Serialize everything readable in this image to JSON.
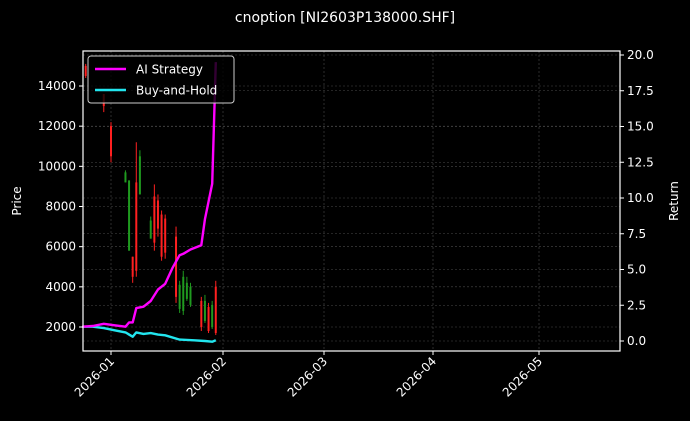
{
  "chart_data": {
    "type": "line",
    "title": "cnoption [NI2603P138000.SHF]",
    "xlabel": "",
    "ylabel": "Price",
    "y2label": "Return",
    "x_ticks": [
      "2026-01",
      "2026-02",
      "2026-03",
      "2026-04",
      "2026-05"
    ],
    "y_ticks": [
      2000,
      4000,
      6000,
      8000,
      10000,
      12000,
      14000
    ],
    "y2_ticks": [
      "0.0",
      "2.5",
      "5.0",
      "7.5",
      "10.0",
      "12.5",
      "15.0",
      "17.5",
      "20.0"
    ],
    "ylim": [
      800,
      15800
    ],
    "y2lim": [
      -0.3,
      20.3
    ],
    "grid": true,
    "legend_position": "upper left",
    "legend": [
      {
        "label": "AI Strategy",
        "color": "#ff00ff"
      },
      {
        "label": "Buy-and-Hold",
        "color": "#22e5ee"
      }
    ],
    "series": [
      {
        "name": "AI Strategy",
        "axis": "right",
        "color": "#ff00ff",
        "points": [
          [
            "2025-12-24",
            1.0
          ],
          [
            "2025-12-27",
            1.05
          ],
          [
            "2025-12-30",
            1.2
          ],
          [
            "2026-01-02",
            1.1
          ],
          [
            "2026-01-05",
            1.0
          ],
          [
            "2026-01-06",
            1.3
          ],
          [
            "2026-01-07",
            1.3
          ],
          [
            "2026-01-08",
            2.3
          ],
          [
            "2026-01-10",
            2.4
          ],
          [
            "2026-01-12",
            2.8
          ],
          [
            "2026-01-14",
            3.6
          ],
          [
            "2026-01-16",
            4.0
          ],
          [
            "2026-01-18",
            5.1
          ],
          [
            "2026-01-20",
            6.0
          ],
          [
            "2026-01-21",
            6.1
          ],
          [
            "2026-01-23",
            6.4
          ],
          [
            "2026-01-26",
            6.7
          ],
          [
            "2026-01-27",
            8.5
          ],
          [
            "2026-01-29",
            11.0
          ],
          [
            "2026-01-30",
            19.5
          ]
        ]
      },
      {
        "name": "Buy-and-Hold",
        "axis": "right",
        "color": "#22e5ee",
        "points": [
          [
            "2025-12-24",
            1.0
          ],
          [
            "2025-12-27",
            1.0
          ],
          [
            "2025-12-30",
            0.9
          ],
          [
            "2026-01-02",
            0.75
          ],
          [
            "2026-01-05",
            0.6
          ],
          [
            "2026-01-07",
            0.3
          ],
          [
            "2026-01-08",
            0.6
          ],
          [
            "2026-01-10",
            0.5
          ],
          [
            "2026-01-12",
            0.55
          ],
          [
            "2026-01-14",
            0.45
          ],
          [
            "2026-01-16",
            0.4
          ],
          [
            "2026-01-20",
            0.1
          ],
          [
            "2026-01-24",
            0.05
          ],
          [
            "2026-01-27",
            0.0
          ],
          [
            "2026-01-29",
            -0.05
          ],
          [
            "2026-01-30",
            0.05
          ]
        ]
      }
    ],
    "candles": [
      {
        "date": "2025-12-25",
        "high": 15100,
        "low": 14400,
        "open": 15000,
        "close": 14500,
        "dir": "down"
      },
      {
        "date": "2025-12-30",
        "high": 13600,
        "low": 12700,
        "open": 13600,
        "close": 13000,
        "dir": "down"
      },
      {
        "date": "2026-01-01",
        "high": 12200,
        "low": 10200,
        "open": 12000,
        "close": 10500,
        "dir": "down"
      },
      {
        "date": "2026-01-05",
        "high": 9800,
        "low": 9200,
        "open": 9200,
        "close": 9700,
        "dir": "up"
      },
      {
        "date": "2026-01-06",
        "high": 9300,
        "low": 5800,
        "open": 5800,
        "close": 9300,
        "dir": "up"
      },
      {
        "date": "2026-01-07",
        "high": 5500,
        "low": 4200,
        "open": 5500,
        "close": 4500,
        "dir": "down"
      },
      {
        "date": "2026-01-08",
        "high": 11200,
        "low": 4500,
        "open": 9200,
        "close": 4800,
        "dir": "down"
      },
      {
        "date": "2026-01-09",
        "high": 10800,
        "low": 8600,
        "open": 8600,
        "close": 10500,
        "dir": "up"
      },
      {
        "date": "2026-01-12",
        "high": 7500,
        "low": 6400,
        "open": 6400,
        "close": 7300,
        "dir": "up"
      },
      {
        "date": "2026-01-13",
        "high": 9100,
        "low": 5800,
        "open": 8500,
        "close": 6200,
        "dir": "down"
      },
      {
        "date": "2026-01-14",
        "high": 8600,
        "low": 6500,
        "open": 8300,
        "close": 6900,
        "dir": "down"
      },
      {
        "date": "2026-01-15",
        "high": 7800,
        "low": 5300,
        "open": 7600,
        "close": 5500,
        "dir": "down"
      },
      {
        "date": "2026-01-16",
        "high": 7600,
        "low": 5400,
        "open": 7400,
        "close": 5700,
        "dir": "down"
      },
      {
        "date": "2026-01-19",
        "high": 7000,
        "low": 3200,
        "open": 6500,
        "close": 3500,
        "dir": "down"
      },
      {
        "date": "2026-01-20",
        "high": 4300,
        "low": 2700,
        "open": 2900,
        "close": 4100,
        "dir": "up"
      },
      {
        "date": "2026-01-21",
        "high": 4800,
        "low": 2600,
        "open": 2800,
        "close": 4500,
        "dir": "up"
      },
      {
        "date": "2026-01-22",
        "high": 4500,
        "low": 3300,
        "open": 3400,
        "close": 4200,
        "dir": "up"
      },
      {
        "date": "2026-01-23",
        "high": 4200,
        "low": 3000,
        "open": 3100,
        "close": 4000,
        "dir": "up"
      },
      {
        "date": "2026-01-26",
        "high": 3500,
        "low": 1800,
        "open": 3300,
        "close": 2000,
        "dir": "down"
      },
      {
        "date": "2026-01-27",
        "high": 3600,
        "low": 2200,
        "open": 2300,
        "close": 3300,
        "dir": "up"
      },
      {
        "date": "2026-01-28",
        "high": 3200,
        "low": 1700,
        "open": 3000,
        "close": 1800,
        "dir": "down"
      },
      {
        "date": "2026-01-29",
        "high": 3300,
        "low": 1900,
        "open": 2000,
        "close": 3100,
        "dir": "up"
      },
      {
        "date": "2026-01-30",
        "high": 4300,
        "low": 1600,
        "open": 4000,
        "close": 1700,
        "dir": "down"
      }
    ]
  },
  "colors": {
    "background": "#000000",
    "up_candle": "#1f9a1f",
    "down_candle": "#ff2020",
    "grid": "#4a4a4a",
    "axis": "#ffffff"
  }
}
